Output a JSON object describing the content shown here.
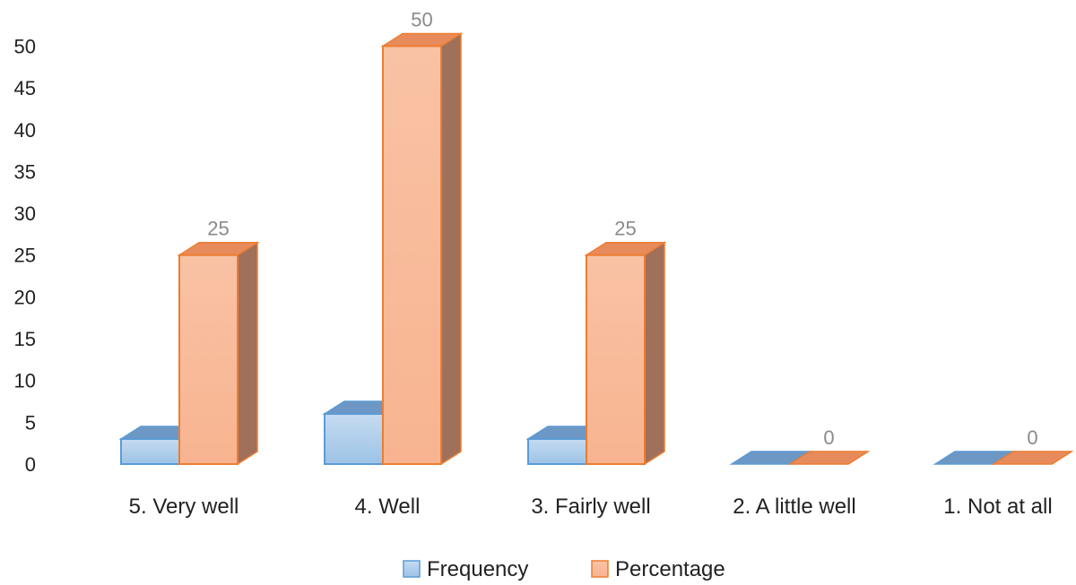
{
  "chart_data": {
    "type": "bar",
    "title": "",
    "xlabel": "",
    "ylabel": "",
    "categories": [
      "5. Very well",
      "4. Well",
      "3. Fairly well",
      "2. A little well",
      "1. Not at all"
    ],
    "series": [
      {
        "name": "Frequency",
        "values": [
          3,
          6,
          3,
          0,
          0
        ],
        "color": "#9dc3e6"
      },
      {
        "name": "Percentage",
        "values": [
          25,
          50,
          25,
          0,
          0
        ],
        "color": "#f8b490"
      }
    ],
    "data_labels": {
      "series": "Percentage",
      "values": [
        25,
        50,
        25,
        0,
        0
      ]
    },
    "yticks": [
      0,
      5,
      10,
      15,
      20,
      25,
      30,
      35,
      40,
      45,
      50
    ],
    "ylim": [
      0,
      50
    ],
    "grid": false,
    "style": "3d-column",
    "legend": "bottom"
  }
}
